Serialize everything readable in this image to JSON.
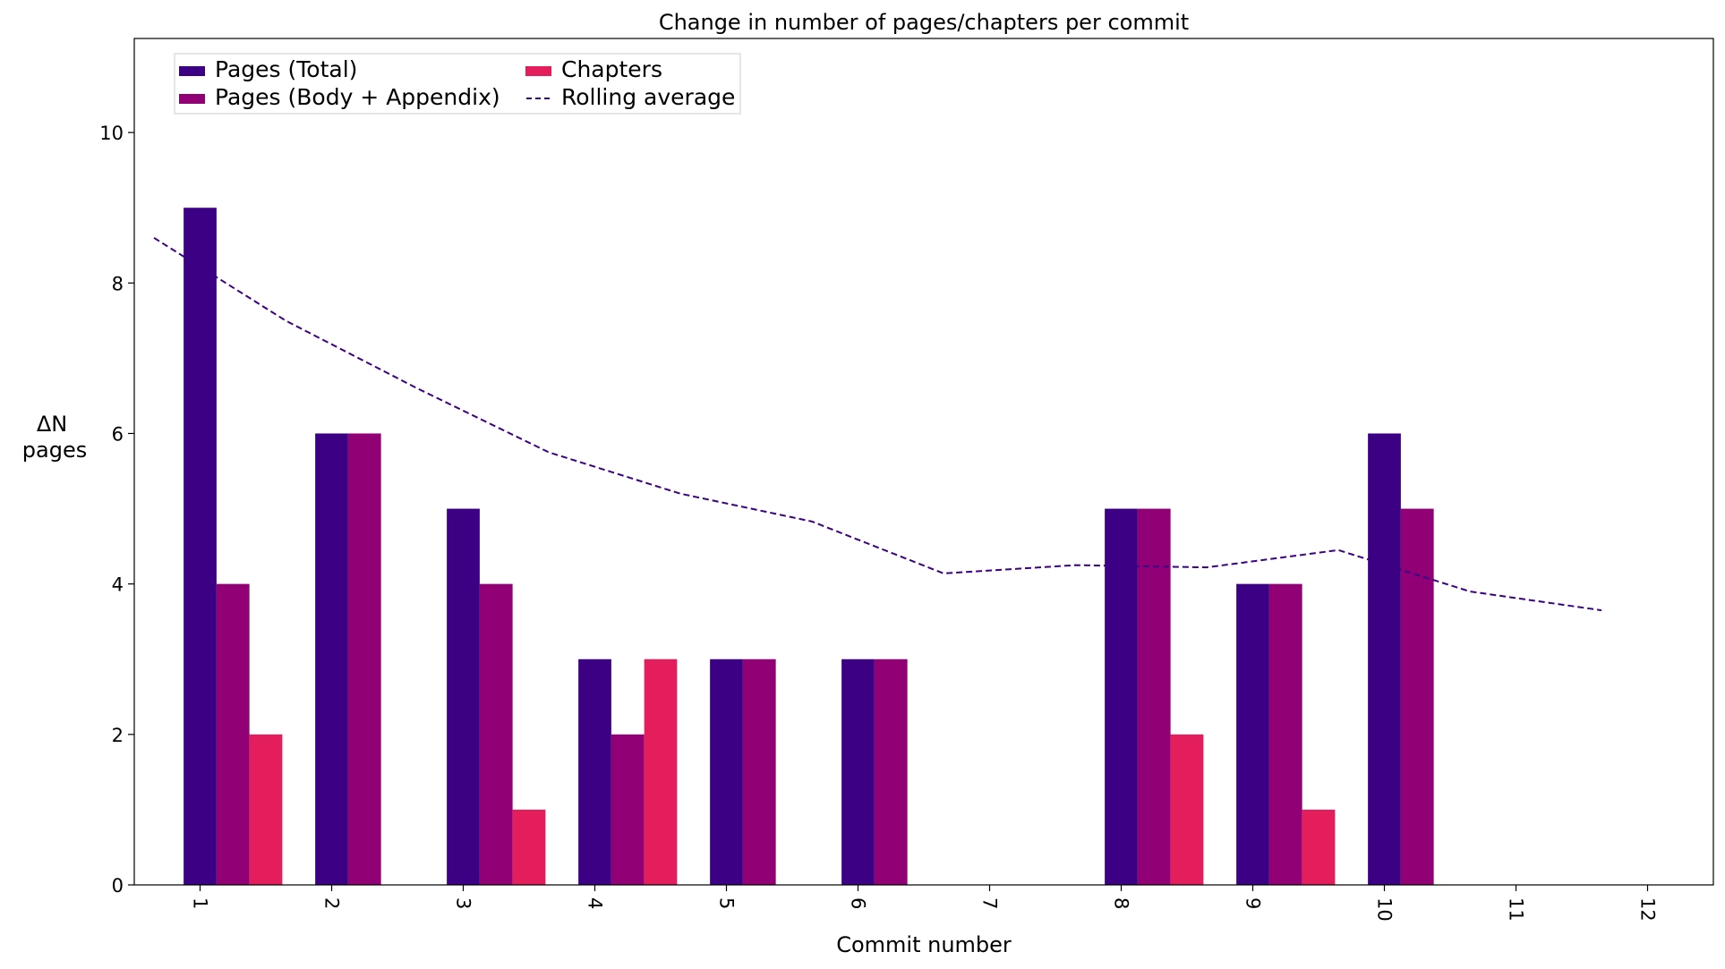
{
  "chart_data": {
    "type": "bar",
    "title": "Change in number of pages/chapters per commit",
    "xlabel": "Commit number",
    "ylabel": [
      "ΔN",
      "pages"
    ],
    "categories": [
      "1",
      "2",
      "3",
      "4",
      "5",
      "6",
      "7",
      "8",
      "9",
      "10",
      "11",
      "12"
    ],
    "xlim": [
      0.5,
      12.5
    ],
    "ylim": [
      0,
      11.25
    ],
    "yticks": [
      0,
      2,
      4,
      6,
      8,
      10
    ],
    "xtick_rotation_deg": 90,
    "series": [
      {
        "name": "Pages (Total)",
        "kind": "bar",
        "color": "#3b0083",
        "values": [
          9,
          6,
          5,
          3,
          3,
          3,
          0,
          5,
          4,
          6,
          0,
          0
        ]
      },
      {
        "name": "Pages (Body + Appendix)",
        "kind": "bar",
        "color": "#920075",
        "values": [
          4,
          6,
          4,
          2,
          3,
          3,
          0,
          5,
          4,
          5,
          0,
          0
        ]
      },
      {
        "name": "Chapters",
        "kind": "bar",
        "color": "#e41d5d",
        "values": [
          2,
          0,
          1,
          3,
          0,
          0,
          0,
          2,
          1,
          0,
          0,
          0
        ]
      },
      {
        "name": "Rolling average",
        "kind": "line",
        "style": "dashed",
        "color": "#3b0083",
        "x": [
          1,
          2,
          3,
          4,
          5,
          6,
          7,
          8,
          9,
          10,
          11,
          12
        ],
        "values": [
          8.6,
          7.5,
          6.6,
          5.75,
          5.2,
          4.83,
          4.14,
          4.25,
          4.22,
          4.45,
          3.9,
          3.65
        ]
      }
    ],
    "legend": {
      "position": "top-left",
      "columns": 2
    },
    "grid": false
  }
}
